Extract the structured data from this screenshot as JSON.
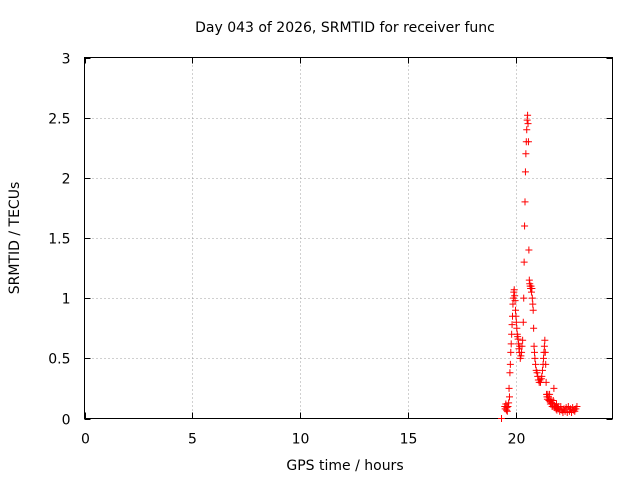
{
  "chart_data": {
    "type": "scatter",
    "title": "Day 043 of 2026, SRMTID for receiver func",
    "xlabel": "GPS time / hours",
    "ylabel": "SRMTID / TECUs",
    "xlim": [
      0,
      24.5
    ],
    "ylim": [
      0,
      3
    ],
    "xticks": [
      0,
      5,
      10,
      15,
      20
    ],
    "xtick_labels": [
      "0",
      "5",
      "10",
      "15",
      "20"
    ],
    "yticks": [
      0,
      0.5,
      1,
      1.5,
      2,
      2.5,
      3
    ],
    "ytick_labels": [
      "0",
      "0.5",
      "1",
      "1.5",
      "2",
      "2.5",
      "3"
    ],
    "grid": true,
    "marker": "+",
    "series": [
      {
        "name": "SRMTID",
        "color": "#ff0000",
        "x": [
          19.35,
          19.5,
          19.52,
          19.55,
          19.58,
          19.6,
          19.62,
          19.65,
          19.68,
          19.7,
          19.72,
          19.74,
          19.76,
          19.78,
          19.8,
          19.82,
          19.84,
          19.86,
          19.88,
          19.9,
          19.92,
          19.94,
          19.96,
          19.98,
          20.0,
          20.02,
          20.04,
          20.06,
          20.08,
          20.1,
          20.12,
          20.14,
          20.16,
          20.18,
          20.2,
          20.22,
          20.25,
          20.28,
          20.3,
          20.33,
          20.36,
          20.38,
          20.4,
          20.42,
          20.44,
          20.46,
          20.48,
          20.5,
          20.52,
          20.54,
          20.56,
          20.58,
          20.6,
          20.62,
          20.64,
          20.66,
          20.68,
          20.7,
          20.72,
          20.74,
          20.76,
          20.78,
          20.8,
          20.82,
          20.84,
          20.86,
          20.88,
          20.9,
          20.93,
          20.96,
          21.0,
          21.03,
          21.06,
          21.1,
          21.13,
          21.16,
          21.2,
          21.22,
          21.25,
          21.28,
          21.3,
          21.32,
          21.34,
          21.36,
          21.38,
          21.4,
          21.42,
          21.44,
          21.46,
          21.48,
          21.5,
          21.52,
          21.55,
          21.58,
          21.6,
          21.62,
          21.65,
          21.68,
          21.7,
          21.72,
          21.75,
          21.78,
          21.8,
          21.82,
          21.85,
          21.88,
          21.9,
          21.92,
          21.95,
          21.98,
          22.0,
          22.05,
          22.1,
          22.15,
          22.2,
          22.25,
          22.3,
          22.35,
          22.4,
          22.45,
          22.5,
          22.55,
          22.6,
          22.65,
          22.7,
          22.75,
          22.8,
          22.85
        ],
        "y": [
          0.0,
          0.1,
          0.08,
          0.12,
          0.07,
          0.09,
          0.06,
          0.1,
          0.13,
          0.25,
          0.18,
          0.38,
          0.45,
          0.55,
          0.62,
          0.7,
          0.78,
          0.85,
          0.95,
          1.0,
          1.05,
          1.07,
          1.02,
          0.98,
          0.9,
          0.85,
          0.8,
          0.75,
          0.7,
          0.68,
          0.66,
          0.62,
          0.58,
          0.55,
          0.6,
          0.5,
          0.52,
          0.55,
          0.6,
          0.65,
          0.8,
          1.0,
          1.3,
          1.6,
          1.8,
          2.05,
          2.2,
          2.3,
          2.4,
          2.48,
          2.52,
          2.45,
          2.3,
          1.4,
          1.15,
          1.12,
          1.1,
          1.08,
          1.1,
          1.05,
          1.08,
          1.0,
          0.95,
          0.9,
          0.75,
          0.6,
          0.55,
          0.5,
          0.45,
          0.4,
          0.38,
          0.35,
          0.32,
          0.3,
          0.32,
          0.3,
          0.33,
          0.35,
          0.4,
          0.45,
          0.5,
          0.55,
          0.6,
          0.65,
          0.55,
          0.45,
          0.3,
          0.2,
          0.18,
          0.16,
          0.2,
          0.18,
          0.15,
          0.2,
          0.14,
          0.12,
          0.16,
          0.13,
          0.1,
          0.12,
          0.15,
          0.25,
          0.11,
          0.09,
          0.1,
          0.08,
          0.12,
          0.07,
          0.09,
          0.1,
          0.08,
          0.06,
          0.1,
          0.07,
          0.05,
          0.08,
          0.06,
          0.09,
          0.05,
          0.1,
          0.06,
          0.08,
          0.05,
          0.09,
          0.07,
          0.06,
          0.08,
          0.1
        ]
      }
    ]
  }
}
